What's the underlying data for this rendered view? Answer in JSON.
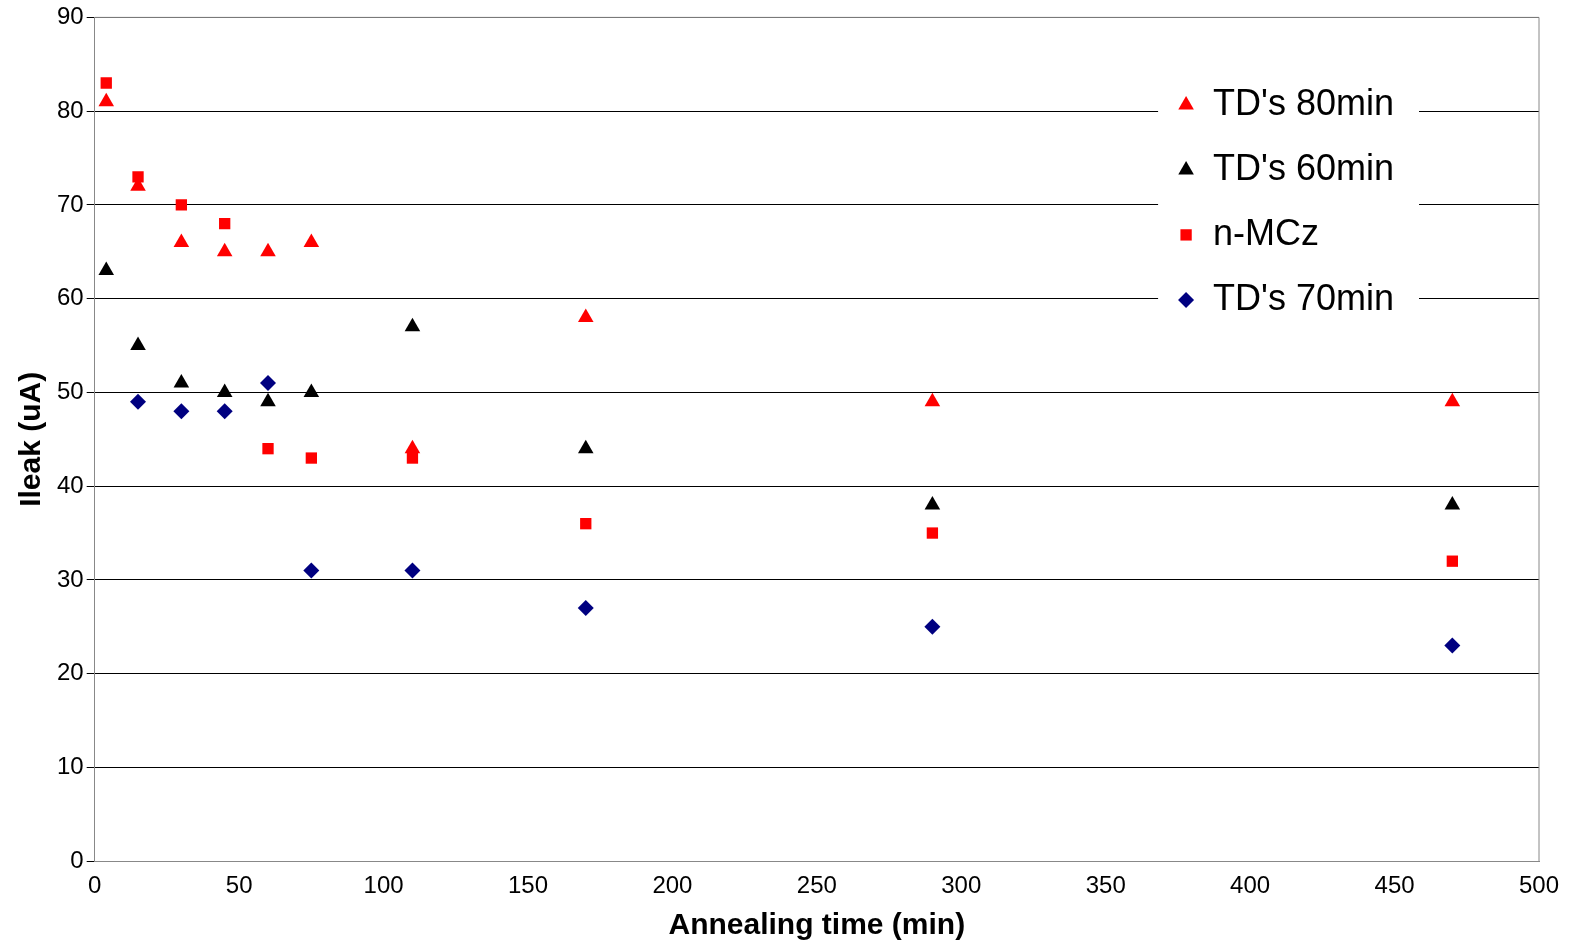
{
  "chart_data": {
    "type": "scatter",
    "xlabel": "Annealing time (min)",
    "ylabel": "Ileak (uA)",
    "xlim": [
      0,
      500
    ],
    "xticks": [
      0,
      50,
      100,
      150,
      200,
      250,
      300,
      350,
      400,
      450,
      500
    ],
    "ylim": [
      0,
      90
    ],
    "yticks": [
      0,
      10,
      20,
      30,
      40,
      50,
      60,
      70,
      80,
      90
    ],
    "grid": "y",
    "legend": "top right",
    "series": [
      {
        "name": "TD's 80min",
        "color": "#ff0000",
        "marker": "triangle",
        "x": [
          4,
          15,
          30,
          45,
          60,
          75,
          110,
          170,
          290,
          470
        ],
        "values": [
          81,
          72,
          66,
          65,
          65,
          66,
          44,
          58,
          49,
          49
        ]
      },
      {
        "name": "TD's 60min",
        "color": "#000000",
        "marker": "triangle",
        "x": [
          4,
          15,
          30,
          45,
          60,
          75,
          110,
          170,
          290,
          470
        ],
        "values": [
          63,
          55,
          51,
          50,
          49,
          50,
          57,
          44,
          38,
          38
        ]
      },
      {
        "name": "n-MCz",
        "color": "#ff0000",
        "marker": "square",
        "x": [
          4,
          15,
          30,
          45,
          60,
          75,
          110,
          170,
          290,
          470
        ],
        "values": [
          83,
          73,
          70,
          68,
          44,
          43,
          43,
          36,
          35,
          32
        ]
      },
      {
        "name": "TD's 70min",
        "color": "#000080",
        "marker": "diamond",
        "x": [
          15,
          30,
          45,
          60,
          75,
          110,
          170,
          290,
          470
        ],
        "values": [
          49,
          48,
          48,
          51,
          31,
          31,
          27,
          25,
          23
        ]
      }
    ]
  }
}
